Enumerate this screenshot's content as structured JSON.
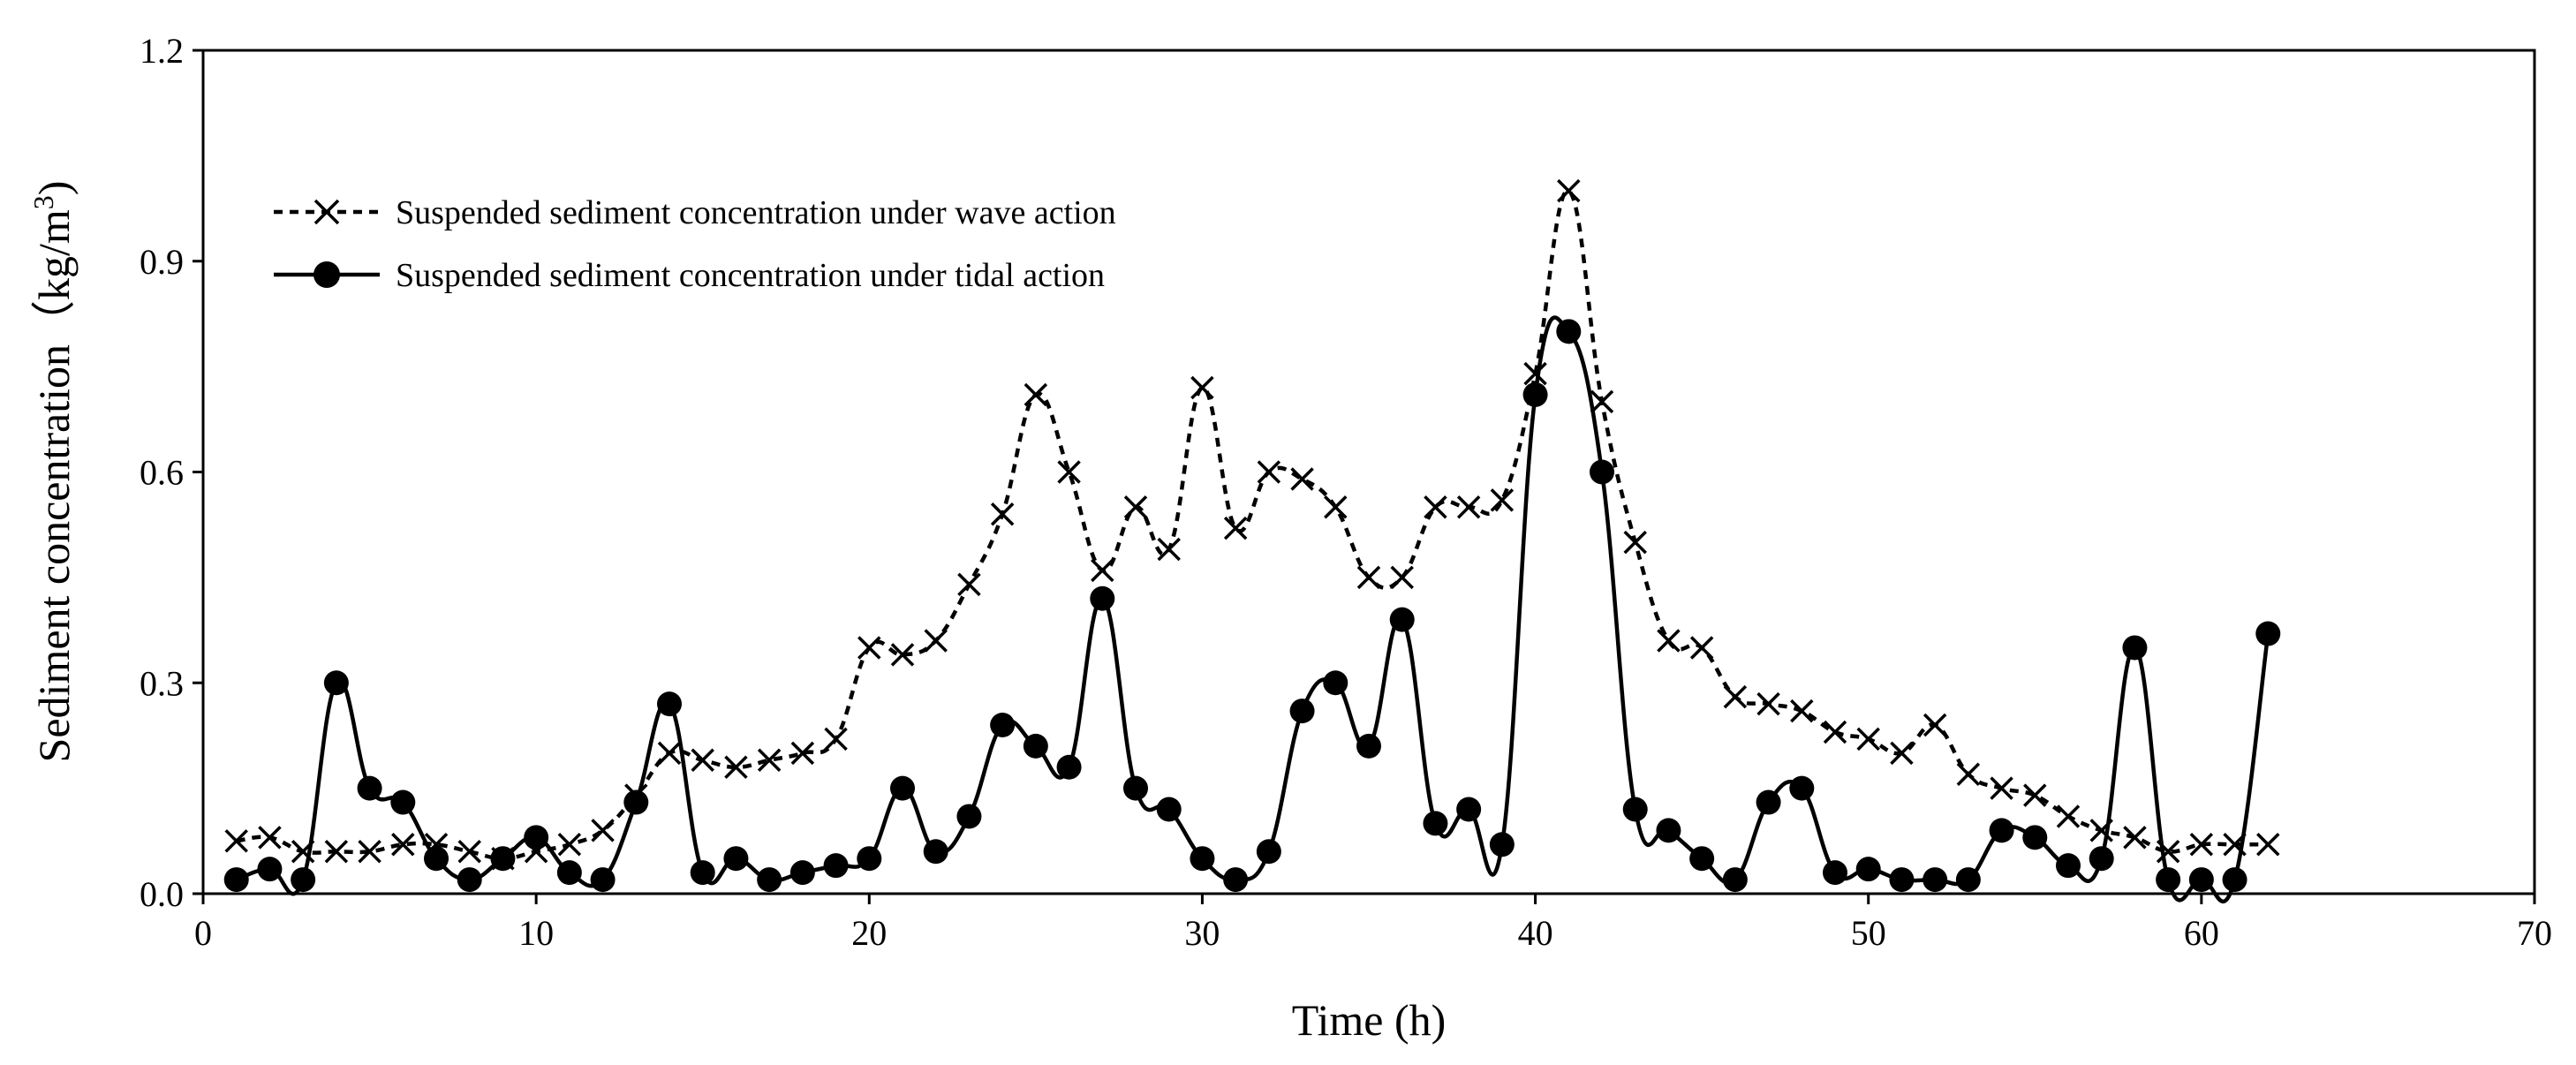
{
  "chart_data": {
    "type": "line",
    "title": "",
    "xlabel": "Time (h)",
    "ylabel": "Sediment concentration（kg/m",
    "ylabel_superscript": "3",
    "ylabel_close": ")",
    "xlim": [
      0,
      70
    ],
    "ylim": [
      0,
      1.2
    ],
    "xticks": [
      0,
      10,
      20,
      30,
      40,
      50,
      60,
      70
    ],
    "xtick_labels": [
      "0",
      "10",
      "20",
      "30",
      "40",
      "50",
      "60",
      "70"
    ],
    "yticks": [
      0,
      0.3,
      0.6,
      0.9,
      1.2
    ],
    "ytick_labels": [
      "0.0",
      "0.3",
      "0.6",
      "0.9",
      "1.2"
    ],
    "grid": false,
    "legend_position": "top-left",
    "series": [
      {
        "name": "Suspended sediment concentration under wave action",
        "marker": "x",
        "line_style": "dashed",
        "color": "#000000",
        "x": [
          1,
          2,
          3,
          4,
          5,
          6,
          7,
          8,
          9,
          10,
          11,
          12,
          13,
          14,
          15,
          16,
          17,
          18,
          19,
          20,
          21,
          22,
          23,
          24,
          25,
          26,
          27,
          28,
          29,
          30,
          31,
          32,
          33,
          34,
          35,
          36,
          37,
          38,
          39,
          40,
          41,
          42,
          43,
          44,
          45,
          46,
          47,
          48,
          49,
          50,
          51,
          52,
          53,
          54,
          55,
          56,
          57,
          58,
          59,
          60,
          61,
          62
        ],
        "y": [
          0.075,
          0.08,
          0.06,
          0.06,
          0.06,
          0.07,
          0.07,
          0.06,
          0.05,
          0.06,
          0.07,
          0.09,
          0.14,
          0.2,
          0.19,
          0.18,
          0.19,
          0.2,
          0.22,
          0.35,
          0.34,
          0.36,
          0.44,
          0.54,
          0.71,
          0.6,
          0.46,
          0.55,
          0.49,
          0.72,
          0.52,
          0.6,
          0.59,
          0.55,
          0.45,
          0.45,
          0.55,
          0.55,
          0.56,
          0.74,
          1.0,
          0.7,
          0.5,
          0.36,
          0.35,
          0.28,
          0.27,
          0.26,
          0.23,
          0.22,
          0.2,
          0.24,
          0.17,
          0.15,
          0.14,
          0.11,
          0.09,
          0.08,
          0.06,
          0.07,
          0.07,
          0.07
        ]
      },
      {
        "name": "Suspended sediment concentration under tidal action",
        "marker": "filled-circle",
        "line_style": "solid",
        "color": "#000000",
        "x": [
          1,
          2,
          3,
          4,
          5,
          6,
          7,
          8,
          9,
          10,
          11,
          12,
          13,
          14,
          15,
          16,
          17,
          18,
          19,
          20,
          21,
          22,
          23,
          24,
          25,
          26,
          27,
          28,
          29,
          30,
          31,
          32,
          33,
          34,
          35,
          36,
          37,
          38,
          39,
          40,
          41,
          42,
          43,
          44,
          45,
          46,
          47,
          48,
          49,
          50,
          51,
          52,
          53,
          54,
          55,
          56,
          57,
          58,
          59,
          60,
          61,
          62
        ],
        "y": [
          0.02,
          0.035,
          0.02,
          0.3,
          0.15,
          0.13,
          0.05,
          0.02,
          0.05,
          0.08,
          0.03,
          0.02,
          0.13,
          0.27,
          0.03,
          0.05,
          0.02,
          0.03,
          0.04,
          0.05,
          0.15,
          0.06,
          0.11,
          0.24,
          0.21,
          0.18,
          0.42,
          0.15,
          0.12,
          0.05,
          0.02,
          0.06,
          0.26,
          0.3,
          0.21,
          0.39,
          0.1,
          0.12,
          0.07,
          0.71,
          0.8,
          0.6,
          0.12,
          0.09,
          0.05,
          0.02,
          0.13,
          0.15,
          0.03,
          0.035,
          0.02,
          0.02,
          0.02,
          0.09,
          0.08,
          0.04,
          0.05,
          0.35,
          0.02,
          0.02,
          0.02,
          0.37
        ]
      }
    ]
  }
}
